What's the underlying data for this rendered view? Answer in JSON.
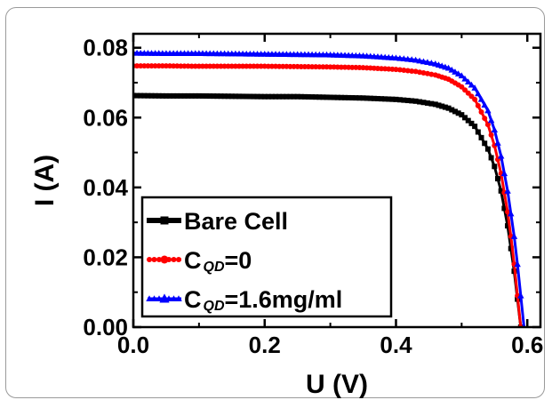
{
  "chart_data": {
    "type": "line",
    "xlabel": "U (V)",
    "ylabel": "I (A)",
    "xlim": [
      0.0,
      0.62
    ],
    "ylim": [
      0.0,
      0.084
    ],
    "x_ticks": [
      "0.0",
      "0.2",
      "0.4",
      "0.6"
    ],
    "x_tick_values": [
      0.0,
      0.2,
      0.4,
      0.6
    ],
    "y_ticks": [
      "0.00",
      "0.02",
      "0.04",
      "0.06",
      "0.08"
    ],
    "y_tick_values": [
      0.0,
      0.02,
      0.04,
      0.06,
      0.08
    ],
    "grid": false,
    "legend_position": "bottom-left",
    "series": [
      {
        "name": "Bare Cell",
        "color": "#000000",
        "marker": "square",
        "x": [
          0.0,
          0.05,
          0.1,
          0.15,
          0.2,
          0.25,
          0.3,
          0.35,
          0.4,
          0.43,
          0.46,
          0.48,
          0.5,
          0.52,
          0.54,
          0.55,
          0.56,
          0.57,
          0.58,
          0.585,
          0.59
        ],
        "y": [
          0.0663,
          0.0662,
          0.0662,
          0.0661,
          0.066,
          0.066,
          0.0658,
          0.0656,
          0.0652,
          0.0647,
          0.0638,
          0.0627,
          0.0608,
          0.0575,
          0.051,
          0.046,
          0.039,
          0.029,
          0.016,
          0.008,
          0.0
        ]
      },
      {
        "name": "C_QD=0",
        "label_main": "C",
        "label_sub": "QD",
        "label_rest": "=0",
        "color": "#ff0000",
        "marker": "circle",
        "x": [
          0.0,
          0.05,
          0.1,
          0.15,
          0.2,
          0.25,
          0.3,
          0.35,
          0.4,
          0.43,
          0.46,
          0.48,
          0.5,
          0.52,
          0.54,
          0.55,
          0.56,
          0.57,
          0.575,
          0.58,
          0.585,
          0.59
        ],
        "y": [
          0.0748,
          0.0748,
          0.0747,
          0.0747,
          0.0747,
          0.0746,
          0.0745,
          0.0743,
          0.0738,
          0.0732,
          0.0722,
          0.071,
          0.0688,
          0.0652,
          0.058,
          0.052,
          0.044,
          0.033,
          0.026,
          0.018,
          0.009,
          0.0
        ]
      },
      {
        "name": "C_QD=1.6mg/ml",
        "label_main": "C",
        "label_sub": "QD",
        "label_rest": "=1.6mg/ml",
        "color": "#0000ff",
        "marker": "triangle",
        "x": [
          0.0,
          0.05,
          0.1,
          0.15,
          0.2,
          0.25,
          0.3,
          0.35,
          0.4,
          0.43,
          0.46,
          0.48,
          0.5,
          0.52,
          0.54,
          0.55,
          0.56,
          0.57,
          0.58,
          0.585,
          0.59,
          0.595
        ],
        "y": [
          0.0785,
          0.0784,
          0.0784,
          0.0783,
          0.0782,
          0.0781,
          0.078,
          0.0777,
          0.0771,
          0.0765,
          0.0754,
          0.0742,
          0.072,
          0.0685,
          0.062,
          0.0565,
          0.049,
          0.039,
          0.026,
          0.018,
          0.009,
          0.0
        ]
      }
    ]
  }
}
